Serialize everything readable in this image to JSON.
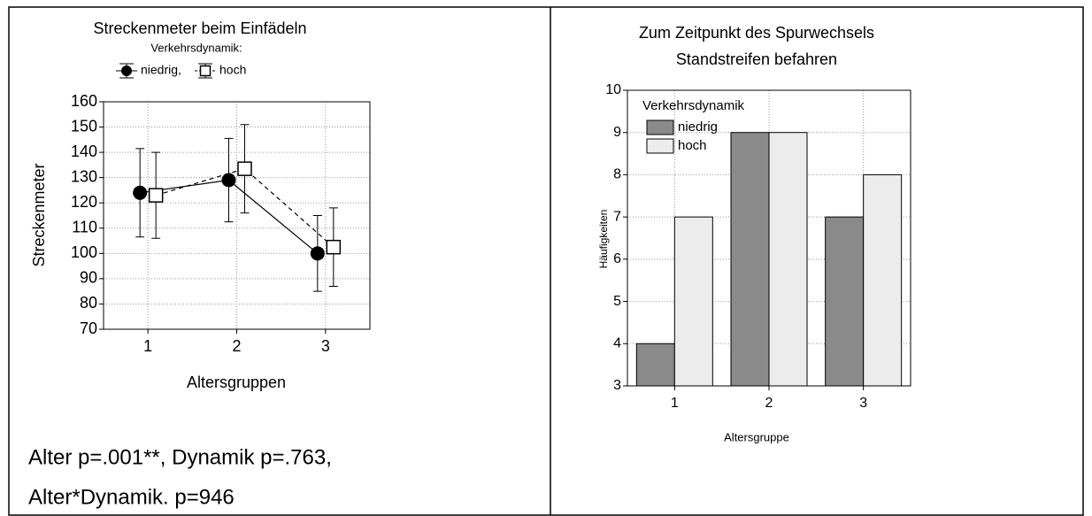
{
  "chart_data": [
    {
      "type": "line",
      "title": "Streckenmeter beim Einfädeln",
      "legend_title": "Verkehrsdynamik:",
      "x_label": "Altersgruppen",
      "y_label": "Streckenmeter",
      "categories": [
        "1",
        "2",
        "3"
      ],
      "series": [
        {
          "name": "niedrig,",
          "color": "#000000",
          "marker": "circle",
          "dashed": false,
          "values": [
            124,
            129,
            100
          ],
          "errors": [
            17.5,
            16.5,
            15
          ]
        },
        {
          "name": "hoch",
          "color": "#000000",
          "marker": "square",
          "dashed": true,
          "values": [
            123,
            133.5,
            102.5
          ],
          "errors": [
            17,
            17.5,
            15.5
          ]
        }
      ],
      "ylim": [
        70,
        160
      ],
      "yticks": [
        70,
        80,
        90,
        100,
        110,
        120,
        130,
        140,
        150,
        160
      ],
      "grid": true
    },
    {
      "type": "bar",
      "title": [
        "Zum Zeitpunkt des Spurwechsels",
        "Standstreifen befahren"
      ],
      "legend_title": "Verkehrsdynamik",
      "x_label": "Altersgruppe",
      "y_label": "Häufigkeiten",
      "categories": [
        "1",
        "2",
        "3"
      ],
      "series": [
        {
          "name": "niedrig",
          "color": "#8a8a8a",
          "values": [
            4,
            9,
            7
          ]
        },
        {
          "name": "hoch",
          "color": "#ececec",
          "values": [
            7,
            9,
            8
          ]
        }
      ],
      "ylim": [
        3,
        10
      ],
      "yticks": [
        3,
        4,
        5,
        6,
        7,
        8,
        9,
        10
      ],
      "grid": true
    }
  ],
  "notes": [
    "Alter p=.001**, Dynamik p=.763,",
    "Alter*Dynamik. p=946"
  ]
}
